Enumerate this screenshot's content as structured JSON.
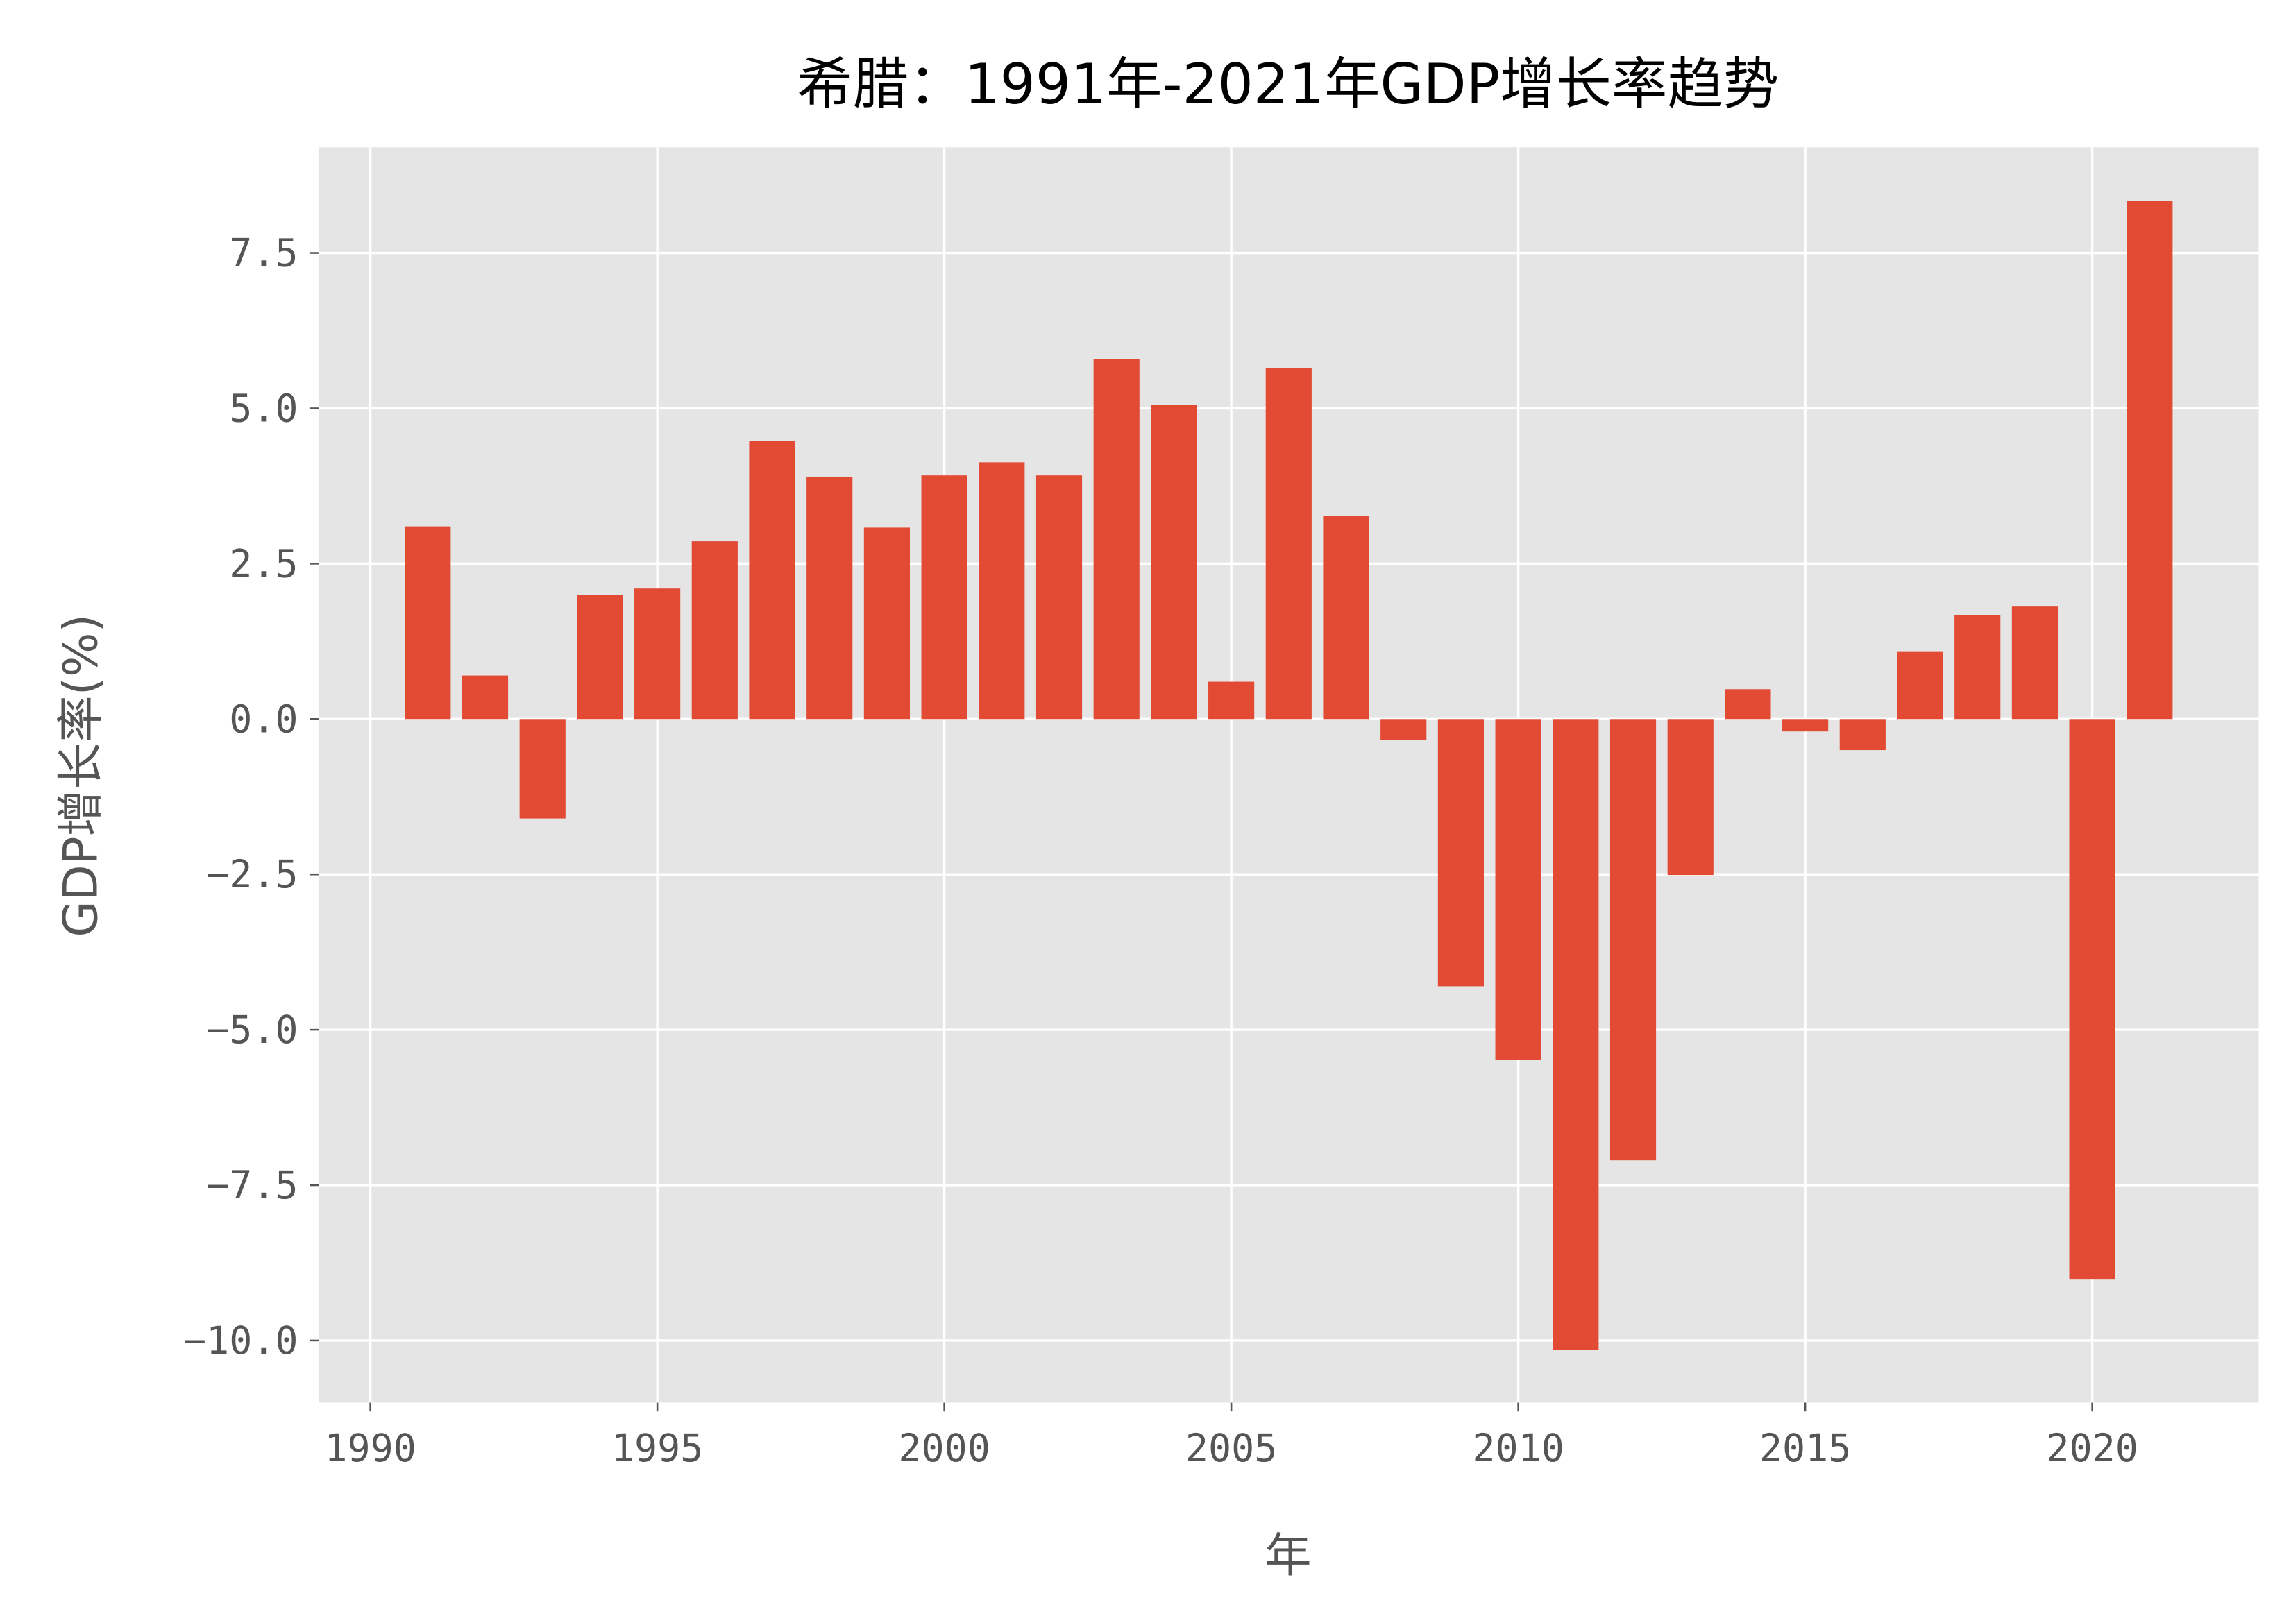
{
  "chart_data": {
    "type": "bar",
    "title": "希腊：1991年-2021年GDP增长率趋势",
    "xlabel": "年",
    "ylabel": "GDP增长率(%)",
    "x": [
      1991,
      1992,
      1993,
      1994,
      1995,
      1996,
      1997,
      1998,
      1999,
      2000,
      2001,
      2002,
      2003,
      2004,
      2005,
      2006,
      2007,
      2008,
      2009,
      2010,
      2011,
      2012,
      2013,
      2014,
      2015,
      2016,
      2017,
      2018,
      2019,
      2020,
      2021
    ],
    "values": [
      3.1,
      0.7,
      -1.6,
      2.0,
      2.1,
      2.86,
      4.48,
      3.9,
      3.08,
      3.92,
      4.13,
      3.92,
      5.79,
      5.06,
      0.6,
      5.65,
      3.27,
      -0.34,
      -4.3,
      -5.48,
      -10.15,
      -7.1,
      -2.51,
      0.48,
      -0.2,
      -0.5,
      1.09,
      1.67,
      1.81,
      -9.02,
      8.34
    ],
    "xlim": [
      1989.1,
      2022.9
    ],
    "ylim": [
      -11.0,
      9.2
    ],
    "xticks": [
      "1990",
      "1995",
      "2000",
      "2005",
      "2010",
      "2015",
      "2020"
    ],
    "yticks": [
      "−10.0",
      "−7.5",
      "−5.0",
      "−2.5",
      "0.0",
      "2.5",
      "5.0",
      "7.5"
    ],
    "grid": true,
    "bar_color": "#E24A33",
    "background": "#E5E5E5"
  }
}
